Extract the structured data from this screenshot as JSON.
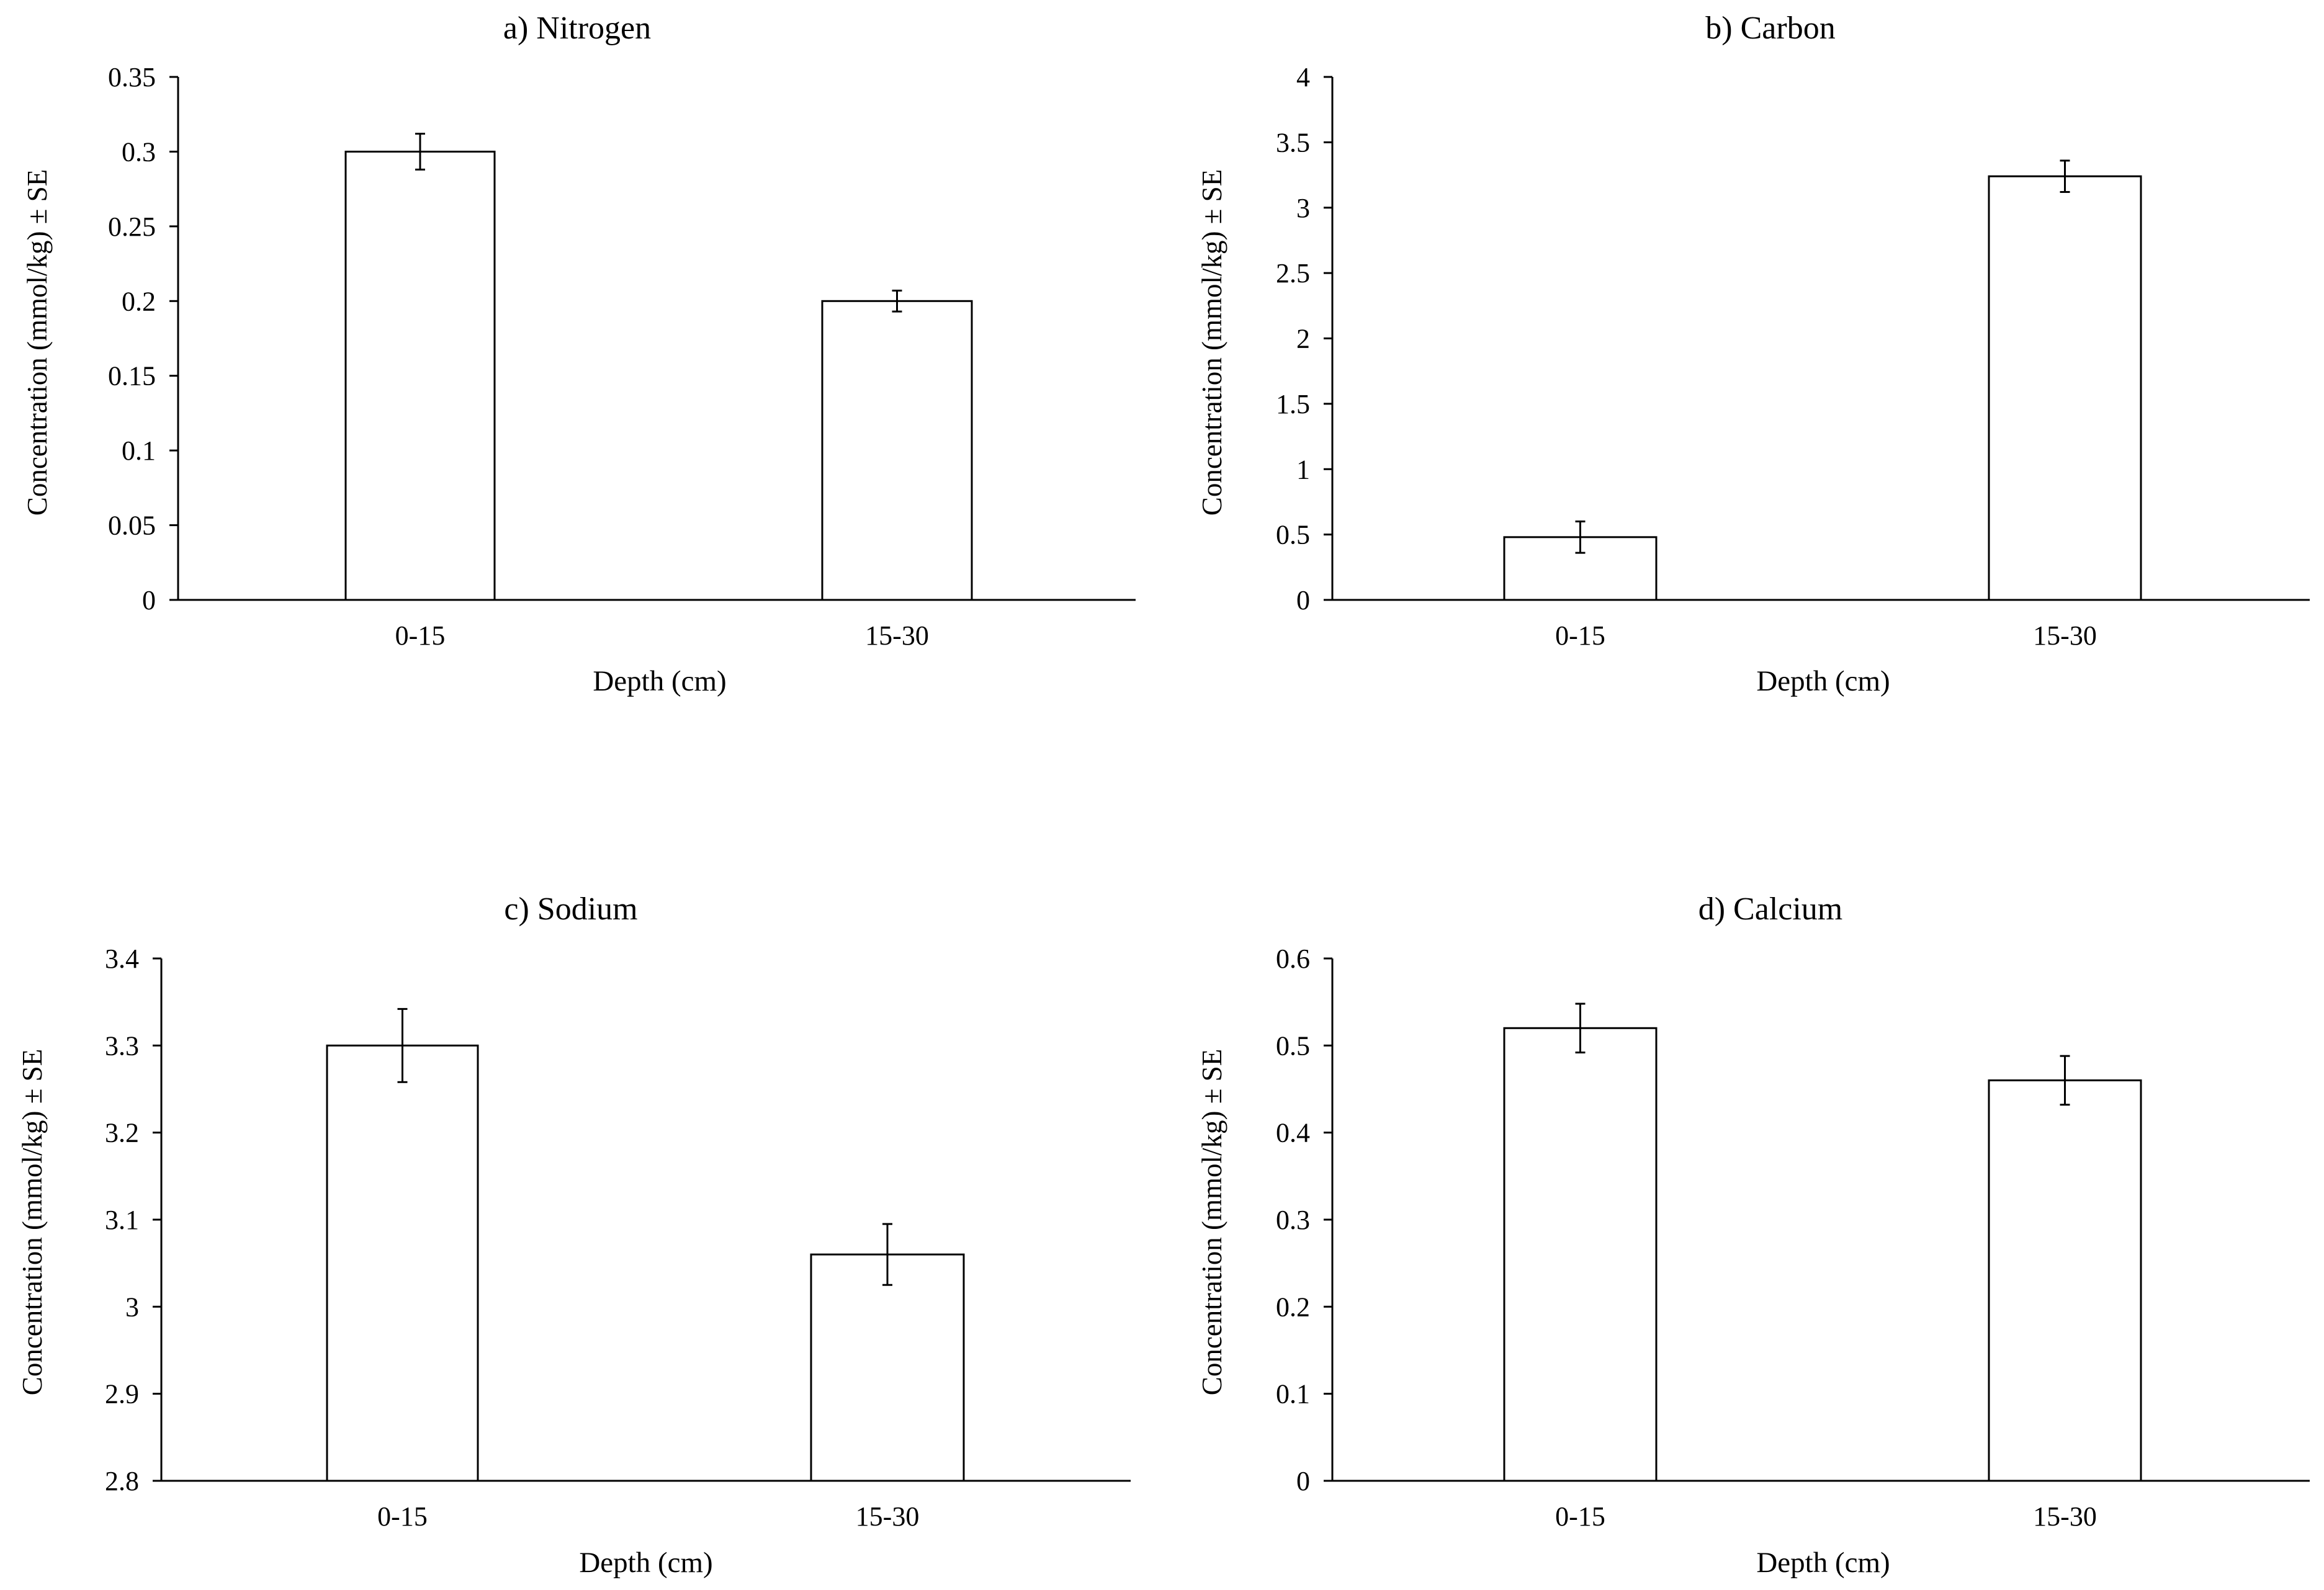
{
  "chart_data": [
    {
      "type": "bar",
      "title": "a) Nitrogen",
      "xlabel": "Depth (cm)",
      "ylabel": "Concentration (mmol/kg) ± SE",
      "categories": [
        "0-15",
        "15-30"
      ],
      "values": [
        0.3,
        0.2
      ],
      "errors": [
        0.012,
        0.007
      ],
      "ylim": [
        0,
        0.35
      ],
      "yticks": [
        0,
        0.05,
        0.1,
        0.15,
        0.2,
        0.25,
        0.3,
        0.35
      ],
      "ytick_labels": [
        "0",
        "0.05",
        "0.1",
        "0.15",
        "0.2",
        "0.25",
        "0.3",
        "0.35"
      ],
      "grid": false,
      "bar_fill": "#ffffff",
      "bar_stroke": "#000000"
    },
    {
      "type": "bar",
      "title": "b) Carbon",
      "xlabel": "Depth  (cm)",
      "ylabel": "Concentration (mmol/kg) ± SE",
      "categories": [
        "0-15",
        "15-30"
      ],
      "values": [
        0.48,
        3.24
      ],
      "errors": [
        0.12,
        0.12
      ],
      "ylim": [
        0,
        4
      ],
      "yticks": [
        0,
        0.5,
        1,
        1.5,
        2,
        2.5,
        3,
        3.5,
        4
      ],
      "ytick_labels": [
        "0",
        "0.5",
        "1",
        "1.5",
        "2",
        "2.5",
        "3",
        "3.5",
        "4"
      ],
      "grid": false,
      "bar_fill": "#ffffff",
      "bar_stroke": "#000000"
    },
    {
      "type": "bar",
      "title": "c) Sodium",
      "xlabel": "Depth (cm)",
      "ylabel": "Concentration (mmol/kg) ± SE",
      "categories": [
        "0-15",
        "15-30"
      ],
      "values": [
        3.3,
        3.06
      ],
      "errors": [
        0.042,
        0.035
      ],
      "ylim": [
        2.8,
        3.4
      ],
      "yticks": [
        2.8,
        2.9,
        3.0,
        3.1,
        3.2,
        3.3,
        3.4
      ],
      "ytick_labels": [
        "2.8",
        "2.9",
        "3",
        "3.1",
        "3.2",
        "3.3",
        "3.4"
      ],
      "grid": false,
      "bar_fill": "#ffffff",
      "bar_stroke": "#000000"
    },
    {
      "type": "bar",
      "title": "d) Calcium",
      "xlabel": "Depth (cm)",
      "ylabel": "Concentration (mmol/kg) ± SE",
      "categories": [
        "0-15",
        "15-30"
      ],
      "values": [
        0.52,
        0.46
      ],
      "errors": [
        0.028,
        0.028
      ],
      "ylim": [
        0,
        0.6
      ],
      "yticks": [
        0,
        0.1,
        0.2,
        0.3,
        0.4,
        0.5,
        0.6
      ],
      "ytick_labels": [
        "0",
        "0.1",
        "0.2",
        "0.3",
        "0.4",
        "0.5",
        "0.6"
      ],
      "grid": false,
      "bar_fill": "#ffffff",
      "bar_stroke": "#000000"
    }
  ]
}
